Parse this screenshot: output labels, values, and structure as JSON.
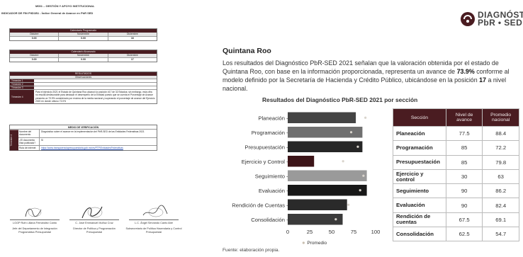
{
  "left": {
    "header": "M001 – GESTIÓN Y APOYO INSTITUCIONAL",
    "indicator": "INDICADOR DE FIN PIID1B1 - Índice General de Avance en PbR SED",
    "programado": {
      "band": "Calendario Programado",
      "months": [
        "Octubre",
        "Noviembre",
        "Diciembre"
      ],
      "values": [
        "0.00",
        "0.00",
        "16"
      ]
    },
    "alcanzado": {
      "band": "Calendario Alcanzado",
      "months": [
        "Octubre",
        "Noviembre",
        "Diciembre"
      ],
      "values": [
        "0.00",
        "0.00",
        "17"
      ]
    },
    "resultados": {
      "band": "RESULTADOS",
      "obs_header": "Observaciones",
      "rows": [
        {
          "label": "Trimestre 1",
          "text": ""
        },
        {
          "label": "Trimestre 2",
          "text": ""
        },
        {
          "label": "Trimestre 3",
          "text": ""
        },
        {
          "label": "Trimestre 4",
          "text": "Para el ejercicio 2021 el Estado de Quintana Roo alcanzó la posición #17 de 32 Estados; sin embargo, esta cifra no resulta desfavorable para destacar el desempeño de la Entidad puesto que se cuenta el Porcentaje de Avance presenta un 73.9% considerado por encima de la media nacional y superando el porcentaje de avance del Ejercicio 2020 en donde obtuvo 72.0%"
        }
      ]
    },
    "verificacion": {
      "title": "MEDIO DE VERIFICACIÓN",
      "trimestre": "Trimestre 4",
      "rows": [
        {
          "k": "Nombre del documento",
          "v": "Diagnóstico sobre el avance en la implementación del PbR-SED de las Entidades Federativas 2021"
        },
        {
          "k": "¿El documento está publicado?",
          "v": "Sí"
        },
        {
          "k": "Ruta de internet",
          "v": "https://www.transparenciapresupuestaria.gob.mx/es/PTP/EntidadesFederativas"
        }
      ]
    },
    "signers": [
      {
        "name": "LGGP Ruth Liliana Fernández Canto",
        "role": "Jefe del Departamento de Integración Programática Presupuestal"
      },
      {
        "name": "C. José Emmanuel Muñoz Cruz",
        "role": "Director de Política y Programación Presupuestal"
      },
      {
        "name": "L.C. Ángel Servando Canto Abé",
        "role": "Subsecretario de Política Hacendaria y Control Presupuestal"
      }
    ]
  },
  "right": {
    "logo_line1": "DIAGNÓSTICO",
    "logo_line2": "PbR • SED",
    "state": "Quintana Roo",
    "para_1": "Los resultados del Diagnóstico PbR-SED 2021 señalan que la valoración obtenida por el estado de Quintana Roo, con base en la información proporcionada, representa un avance de ",
    "para_pct": "73.9%",
    "para_2": " conforme al modelo definido por la Secretaría de Hacienda y Crédito Público, ubicándose en la posición ",
    "para_pos": "17",
    "para_3": " a nivel nacional.",
    "source": "Fuente: elaboración propia.",
    "table": {
      "headers": [
        "Sección",
        "Nivel de avance",
        "Promedio nacional"
      ],
      "rows": [
        [
          "Planeación",
          "77.5",
          "88.4"
        ],
        [
          "Programación",
          "85",
          "72.2"
        ],
        [
          "Presupuestación",
          "85",
          "79.8"
        ],
        [
          "Ejercicio y control",
          "30",
          "63"
        ],
        [
          "Seguimiento",
          "90",
          "86.2"
        ],
        [
          "Evaluación",
          "90",
          "82.4"
        ],
        [
          "Rendición de cuentas",
          "67.5",
          "69.1"
        ],
        [
          "Consolidación",
          "62.5",
          "54.7"
        ]
      ]
    }
  },
  "colors": {
    "maroon": "#4a1c21",
    "bar_shades": [
      "#444444",
      "#707070",
      "#262626",
      "#3c1418",
      "#9a9a9a",
      "#181818",
      "#2a2a2a",
      "#3a3a3a"
    ],
    "marker": "#d9d4cc"
  },
  "chart_data": {
    "type": "bar",
    "orientation": "horizontal",
    "title": "Resultados del Diagnóstico PbR-SED 2021 por sección",
    "categories": [
      "Planeación",
      "Programación",
      "Presupuestación",
      "Ejercicio y Control",
      "Seguimiento",
      "Evaluación",
      "Rendición de Cuentas",
      "Consolidación"
    ],
    "series": [
      {
        "values": [
          77.5,
          85,
          85,
          30,
          90,
          90,
          67.5,
          62.5
        ]
      },
      {
        "name": "Promedio",
        "marker": "dot",
        "values": [
          88.4,
          72.2,
          79.8,
          63,
          86.2,
          82.4,
          69.1,
          54.7
        ]
      }
    ],
    "xlim": [
      0,
      100
    ],
    "xticks": [
      "0",
      "25",
      "50",
      "75",
      "100"
    ],
    "legend": "bottom",
    "grid": false
  }
}
